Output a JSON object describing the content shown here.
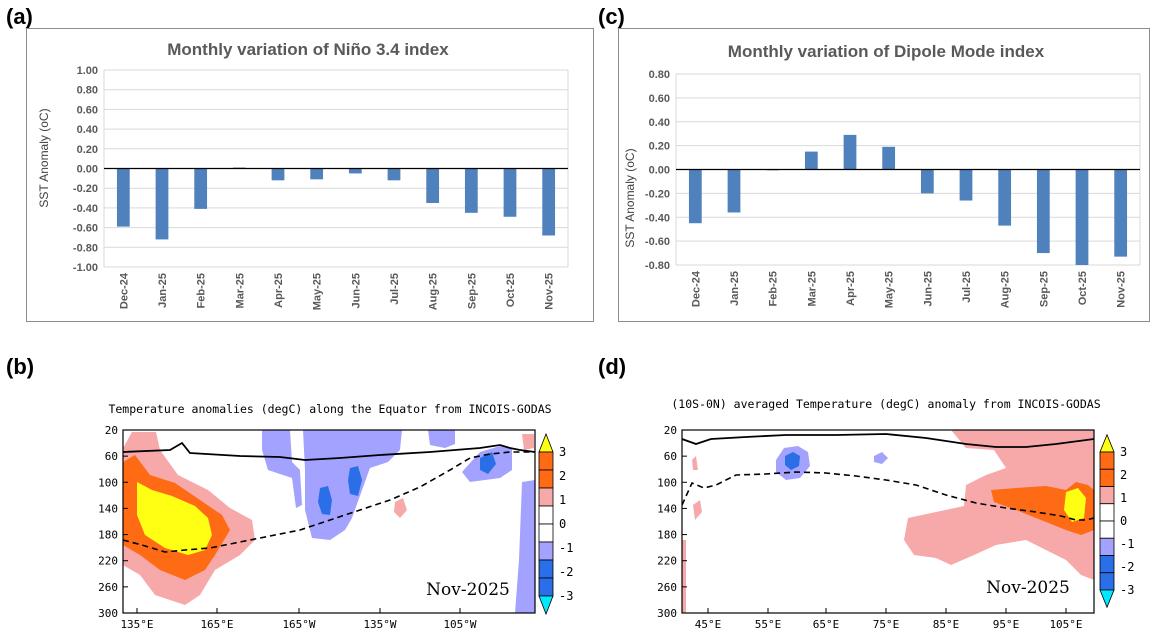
{
  "labels": {
    "a": "(a)",
    "b": "(b)",
    "c": "(c)",
    "d": "(d)"
  },
  "colors": {
    "bar": "#4f81bd",
    "neg1": "#a3a3ff",
    "neg2": "#2a6fe8",
    "neg3": "#00eaff",
    "pos1": "#f7a9a9",
    "pos2": "#ff6a14",
    "pos3": "#ffff14"
  },
  "chart_data": [
    {
      "id": "a",
      "type": "bar",
      "title": "Monthly variation of Niño 3.4 index",
      "ylabel": "SST Anomaly (oC)",
      "ylim": [
        -1.0,
        1.0
      ],
      "yticks": [
        "1.00",
        "0.80",
        "0.60",
        "0.40",
        "0.20",
        "0.00",
        "-0.20",
        "-0.40",
        "-0.60",
        "-0.80",
        "-1.00"
      ],
      "categories": [
        "Dec-24",
        "Jan-25",
        "Feb-25",
        "Mar-25",
        "Apr-25",
        "May-25",
        "Jun-25",
        "Jul-25",
        "Aug-25",
        "Sep-25",
        "Oct-25",
        "Nov-25"
      ],
      "values": [
        -0.59,
        -0.72,
        -0.41,
        0.01,
        -0.12,
        -0.11,
        -0.05,
        -0.12,
        -0.35,
        -0.45,
        -0.49,
        -0.68
      ]
    },
    {
      "id": "c",
      "type": "bar",
      "title": "Monthly variation of Dipole Mode index",
      "ylabel": "SST Anomaly (oC)",
      "ylim": [
        -0.8,
        0.8
      ],
      "yticks": [
        "0.80",
        "0.60",
        "0.40",
        "0.20",
        "0.00",
        "-0.20",
        "-0.40",
        "-0.60",
        "-0.80"
      ],
      "categories": [
        "Dec-24",
        "Jan-25",
        "Feb-25",
        "Mar-25",
        "Apr-25",
        "May-25",
        "Jun-25",
        "Jul-25",
        "Aug-25",
        "Sep-25",
        "Oct-25",
        "Nov-25"
      ],
      "values": [
        -0.45,
        -0.36,
        0.0,
        0.15,
        0.29,
        0.19,
        -0.2,
        -0.26,
        -0.47,
        -0.7,
        -0.8,
        -0.73
      ]
    },
    {
      "id": "b",
      "type": "heatmap",
      "title": "Temperature anomalies (degC) along the Equator from INCOIS-GODAS",
      "yticks": [
        "20",
        "60",
        "100",
        "140",
        "180",
        "220",
        "260",
        "300"
      ],
      "xticks": [
        "135°E",
        "165°E",
        "165°W",
        "135°W",
        "105°W"
      ],
      "month": "Nov-2025",
      "colorbar": [
        "3",
        "2",
        "1",
        "0",
        "-1",
        "-2",
        "-3"
      ]
    },
    {
      "id": "d",
      "type": "heatmap",
      "title": "(10S-0N) averaged Temperature (degC) anomaly from INCOIS-GODAS",
      "yticks": [
        "20",
        "60",
        "100",
        "140",
        "180",
        "220",
        "260",
        "300"
      ],
      "xticks": [
        "45°E",
        "55°E",
        "65°E",
        "75°E",
        "85°E",
        "95°E",
        "105°E"
      ],
      "month": "Nov-2025",
      "colorbar": [
        "3",
        "2",
        "1",
        "0",
        "-1",
        "-2",
        "-3"
      ]
    }
  ]
}
